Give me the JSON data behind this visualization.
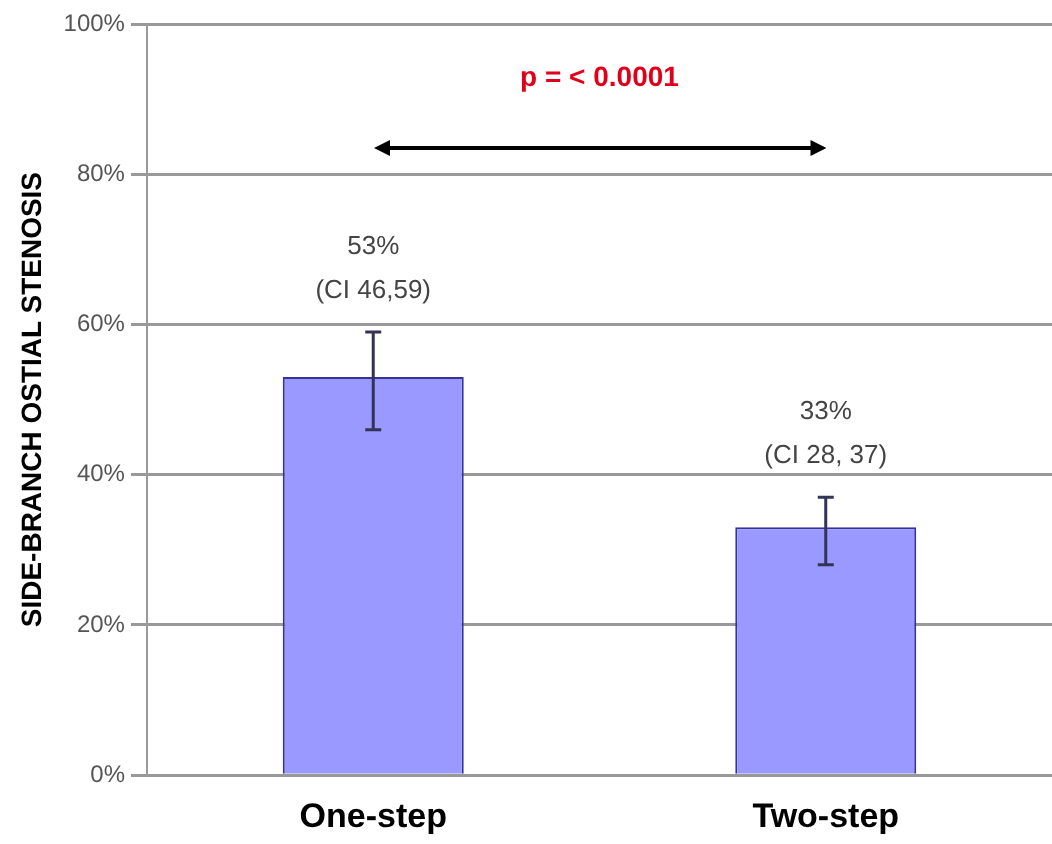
{
  "chart_data": {
    "type": "bar",
    "ylabel": "SIDE-BRANCH OSTIAL STENOSIS",
    "categories": [
      "One-step",
      "Two-step"
    ],
    "values": [
      53,
      33
    ],
    "color": "#9999ff",
    "errors": [
      [
        46,
        59
      ],
      [
        28,
        37
      ]
    ],
    "value_labels": [
      "53%\n(CI 46,59)",
      "33%\n(CI 28, 37)"
    ],
    "ylim": [
      0,
      100
    ],
    "yticks": [
      {
        "value": 0,
        "label": "0%"
      },
      {
        "value": 20,
        "label": "20%"
      },
      {
        "value": 40,
        "label": "40%"
      },
      {
        "value": 60,
        "label": "60%"
      },
      {
        "value": 80,
        "label": "80%"
      },
      {
        "value": 100,
        "label": "100%"
      }
    ],
    "grid": "y",
    "annotations": [
      "p = < 0.0001"
    ]
  }
}
